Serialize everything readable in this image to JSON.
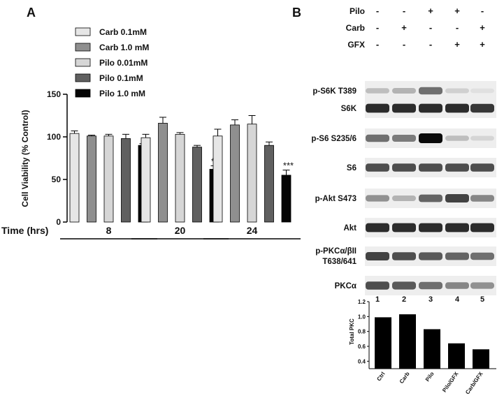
{
  "panel_a": {
    "letter": "A",
    "time_label": "Time (hrs)"
  },
  "panel_b": {
    "letter": "B",
    "treatments": [
      {
        "name": "Pilo",
        "signs": [
          "-",
          "-",
          "+",
          "+",
          "-"
        ]
      },
      {
        "name": "Carb",
        "signs": [
          "-",
          "+",
          "-",
          "-",
          "+"
        ]
      },
      {
        "name": "GFX",
        "signs": [
          "-",
          "-",
          "-",
          "+",
          "+"
        ]
      }
    ],
    "blots": [
      {
        "label": "p-S6K T389",
        "intensity": [
          0.2,
          0.25,
          0.55,
          0.12,
          0.05
        ]
      },
      {
        "label": "S6K",
        "intensity": [
          0.85,
          0.85,
          0.85,
          0.85,
          0.8
        ]
      },
      {
        "label": "p-S6 S235/6",
        "intensity": [
          0.55,
          0.5,
          1.0,
          0.2,
          0.1
        ]
      },
      {
        "label": "S6",
        "intensity": [
          0.7,
          0.7,
          0.7,
          0.7,
          0.7
        ]
      },
      {
        "label": "p-Akt  S473",
        "intensity": [
          0.4,
          0.25,
          0.6,
          0.75,
          0.45
        ]
      },
      {
        "label": "Akt",
        "intensity": [
          0.85,
          0.85,
          0.85,
          0.85,
          0.85
        ]
      },
      {
        "label": "p-PKCα/βII",
        "label2": "T638/641",
        "intensity": [
          0.75,
          0.7,
          0.65,
          0.6,
          0.55
        ]
      },
      {
        "label": "PKCα",
        "intensity": [
          0.7,
          0.65,
          0.55,
          0.45,
          0.4
        ]
      }
    ],
    "lane_numbers": [
      "1",
      "2",
      "3",
      "4",
      "5"
    ]
  },
  "chart_data": [
    {
      "type": "bar",
      "panel": "A",
      "ylabel": "Cell Viability (% Control)",
      "xlabel": "Time (hrs)",
      "categories": [
        "8",
        "20",
        "24"
      ],
      "ylim": [
        0,
        150
      ],
      "yticks": [
        0,
        50,
        100,
        150
      ],
      "legend_position": "top-left",
      "series": [
        {
          "name": "Carb 0.1mM",
          "color": "#e6e6e6",
          "values": [
            104,
            99,
            101
          ],
          "errors": [
            3,
            4,
            8
          ],
          "stars": [
            "",
            "",
            ""
          ]
        },
        {
          "name": "Carb 1.0 mM",
          "color": "#8f8f8f",
          "values": [
            101,
            116,
            114
          ],
          "errors": [
            1,
            7,
            6
          ],
          "stars": [
            "",
            "",
            ""
          ]
        },
        {
          "name": "Pilo 0.01mM",
          "color": "#d6d6d6",
          "values": [
            101,
            103,
            115
          ],
          "errors": [
            2,
            2,
            10
          ],
          "stars": [
            "",
            "",
            ""
          ]
        },
        {
          "name": "Pilo 0.1mM",
          "color": "#606060",
          "values": [
            98,
            88,
            90
          ],
          "errors": [
            5,
            2,
            4
          ],
          "stars": [
            "",
            "",
            ""
          ]
        },
        {
          "name": "Pilo 1.0 mM",
          "color": "#050505",
          "values": [
            90,
            62,
            55
          ],
          "errors": [
            2,
            4,
            6
          ],
          "stars": [
            "",
            "***",
            "***"
          ]
        }
      ]
    },
    {
      "type": "bar",
      "panel": "B",
      "ylabel": "Total PKC",
      "categories": [
        "Ctrl",
        "Carb",
        "Pilo",
        "Pilo/GFX",
        "Carb/GFX"
      ],
      "values": [
        0.99,
        1.03,
        0.83,
        0.64,
        0.56
      ],
      "ylim": [
        0.3,
        1.2
      ],
      "yticks": [
        0.4,
        0.6,
        0.8,
        1.0,
        1.2
      ],
      "ytick_labels": [
        "0.4",
        "0.6",
        "0.8",
        "1.0",
        "1.2"
      ],
      "color": "#000000"
    }
  ]
}
